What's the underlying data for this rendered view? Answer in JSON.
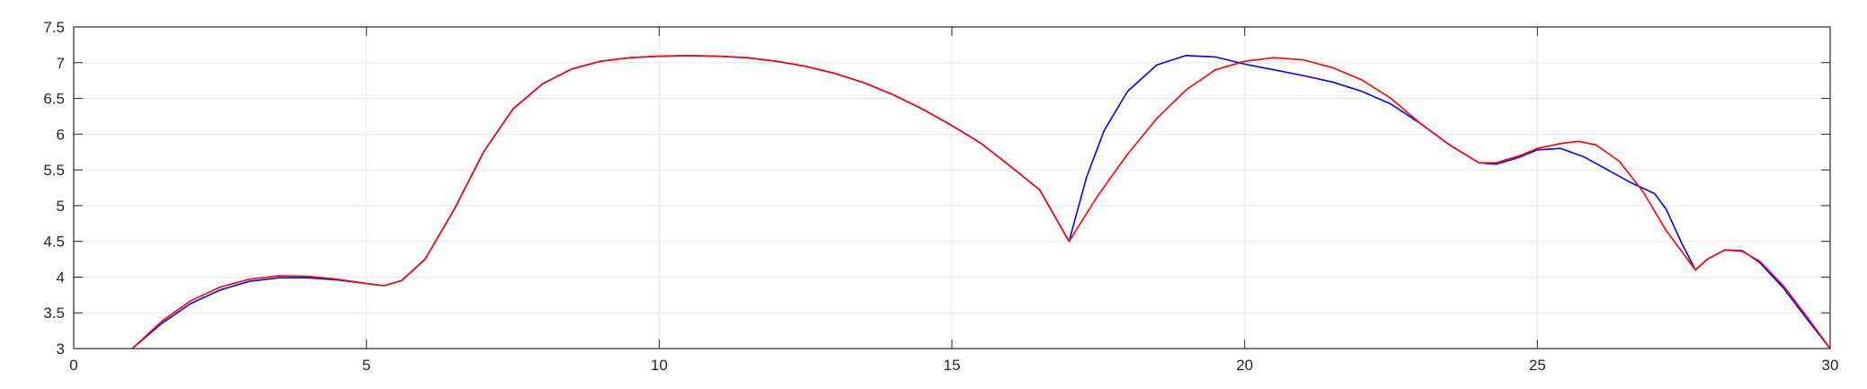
{
  "chart_data": {
    "type": "line",
    "title": "",
    "xlabel": "",
    "ylabel": "",
    "xlim": [
      0,
      30
    ],
    "ylim": [
      3,
      7.5
    ],
    "grid": true,
    "x_ticks": [
      "0",
      "5",
      "10",
      "15",
      "20",
      "25",
      "30"
    ],
    "y_ticks": [
      "3",
      "3.5",
      "4",
      "4.5",
      "5",
      "5.5",
      "6",
      "6.5",
      "7",
      "7.5"
    ],
    "series": [
      {
        "color": "#0000ff",
        "points": [
          [
            1.0,
            3.0
          ],
          [
            1.5,
            3.35
          ],
          [
            2.0,
            3.63
          ],
          [
            2.5,
            3.82
          ],
          [
            3.0,
            3.94
          ],
          [
            3.5,
            3.99
          ],
          [
            4.0,
            3.99
          ],
          [
            4.5,
            3.96
          ],
          [
            5.0,
            3.91
          ],
          [
            5.3,
            3.88
          ],
          [
            5.6,
            3.95
          ],
          [
            6.0,
            4.25
          ],
          [
            6.5,
            4.95
          ],
          [
            7.0,
            5.75
          ],
          [
            7.5,
            6.35
          ],
          [
            8.0,
            6.7
          ],
          [
            8.5,
            6.91
          ],
          [
            9.0,
            7.02
          ],
          [
            9.5,
            7.07
          ],
          [
            10.0,
            7.09
          ],
          [
            10.5,
            7.1
          ],
          [
            11.0,
            7.09
          ],
          [
            11.5,
            7.07
          ],
          [
            12.0,
            7.02
          ],
          [
            12.5,
            6.95
          ],
          [
            13.0,
            6.85
          ],
          [
            13.5,
            6.72
          ],
          [
            14.0,
            6.55
          ],
          [
            14.5,
            6.35
          ],
          [
            15.0,
            6.12
          ],
          [
            15.5,
            5.87
          ],
          [
            16.0,
            5.55
          ],
          [
            16.5,
            5.22
          ],
          [
            17.0,
            4.5
          ],
          [
            17.3,
            5.4
          ],
          [
            17.6,
            6.05
          ],
          [
            18.0,
            6.6
          ],
          [
            18.5,
            6.97
          ],
          [
            19.0,
            7.1
          ],
          [
            19.5,
            7.08
          ],
          [
            20.0,
            6.98
          ],
          [
            20.5,
            6.9
          ],
          [
            21.0,
            6.82
          ],
          [
            21.5,
            6.73
          ],
          [
            22.0,
            6.6
          ],
          [
            22.5,
            6.42
          ],
          [
            23.0,
            6.15
          ],
          [
            23.5,
            5.85
          ],
          [
            24.0,
            5.6
          ],
          [
            24.3,
            5.58
          ],
          [
            24.7,
            5.68
          ],
          [
            25.0,
            5.78
          ],
          [
            25.4,
            5.8
          ],
          [
            25.8,
            5.68
          ],
          [
            26.2,
            5.5
          ],
          [
            26.6,
            5.32
          ],
          [
            27.0,
            5.17
          ],
          [
            27.2,
            4.95
          ],
          [
            27.45,
            4.5
          ],
          [
            27.7,
            4.1
          ],
          [
            27.9,
            4.25
          ],
          [
            28.2,
            4.38
          ],
          [
            28.5,
            4.37
          ],
          [
            28.8,
            4.2
          ],
          [
            29.2,
            3.85
          ],
          [
            29.6,
            3.42
          ],
          [
            30.0,
            3.0
          ]
        ]
      },
      {
        "color": "#ff0000",
        "points": [
          [
            1.0,
            3.0
          ],
          [
            1.5,
            3.38
          ],
          [
            2.0,
            3.67
          ],
          [
            2.5,
            3.86
          ],
          [
            3.0,
            3.97
          ],
          [
            3.5,
            4.02
          ],
          [
            4.0,
            4.01
          ],
          [
            4.5,
            3.97
          ],
          [
            5.0,
            3.91
          ],
          [
            5.3,
            3.88
          ],
          [
            5.6,
            3.95
          ],
          [
            6.0,
            4.25
          ],
          [
            6.5,
            4.95
          ],
          [
            7.0,
            5.75
          ],
          [
            7.5,
            6.35
          ],
          [
            8.0,
            6.7
          ],
          [
            8.5,
            6.91
          ],
          [
            9.0,
            7.02
          ],
          [
            9.5,
            7.07
          ],
          [
            10.0,
            7.09
          ],
          [
            10.5,
            7.1
          ],
          [
            11.0,
            7.09
          ],
          [
            11.5,
            7.07
          ],
          [
            12.0,
            7.02
          ],
          [
            12.5,
            6.95
          ],
          [
            13.0,
            6.85
          ],
          [
            13.5,
            6.72
          ],
          [
            14.0,
            6.55
          ],
          [
            14.5,
            6.35
          ],
          [
            15.0,
            6.12
          ],
          [
            15.5,
            5.87
          ],
          [
            16.0,
            5.55
          ],
          [
            16.5,
            5.22
          ],
          [
            17.0,
            4.5
          ],
          [
            17.5,
            5.15
          ],
          [
            18.0,
            5.72
          ],
          [
            18.5,
            6.22
          ],
          [
            19.0,
            6.62
          ],
          [
            19.5,
            6.9
          ],
          [
            20.0,
            7.02
          ],
          [
            20.5,
            7.07
          ],
          [
            21.0,
            7.04
          ],
          [
            21.5,
            6.93
          ],
          [
            22.0,
            6.76
          ],
          [
            22.5,
            6.5
          ],
          [
            23.0,
            6.15
          ],
          [
            23.5,
            5.85
          ],
          [
            24.0,
            5.6
          ],
          [
            24.3,
            5.6
          ],
          [
            24.7,
            5.7
          ],
          [
            25.0,
            5.8
          ],
          [
            25.4,
            5.87
          ],
          [
            25.7,
            5.9
          ],
          [
            26.0,
            5.85
          ],
          [
            26.4,
            5.62
          ],
          [
            26.8,
            5.2
          ],
          [
            27.2,
            4.65
          ],
          [
            27.7,
            4.1
          ],
          [
            27.9,
            4.25
          ],
          [
            28.2,
            4.38
          ],
          [
            28.5,
            4.36
          ],
          [
            28.8,
            4.22
          ],
          [
            29.2,
            3.88
          ],
          [
            29.6,
            3.45
          ],
          [
            30.0,
            3.0
          ]
        ]
      }
    ]
  }
}
